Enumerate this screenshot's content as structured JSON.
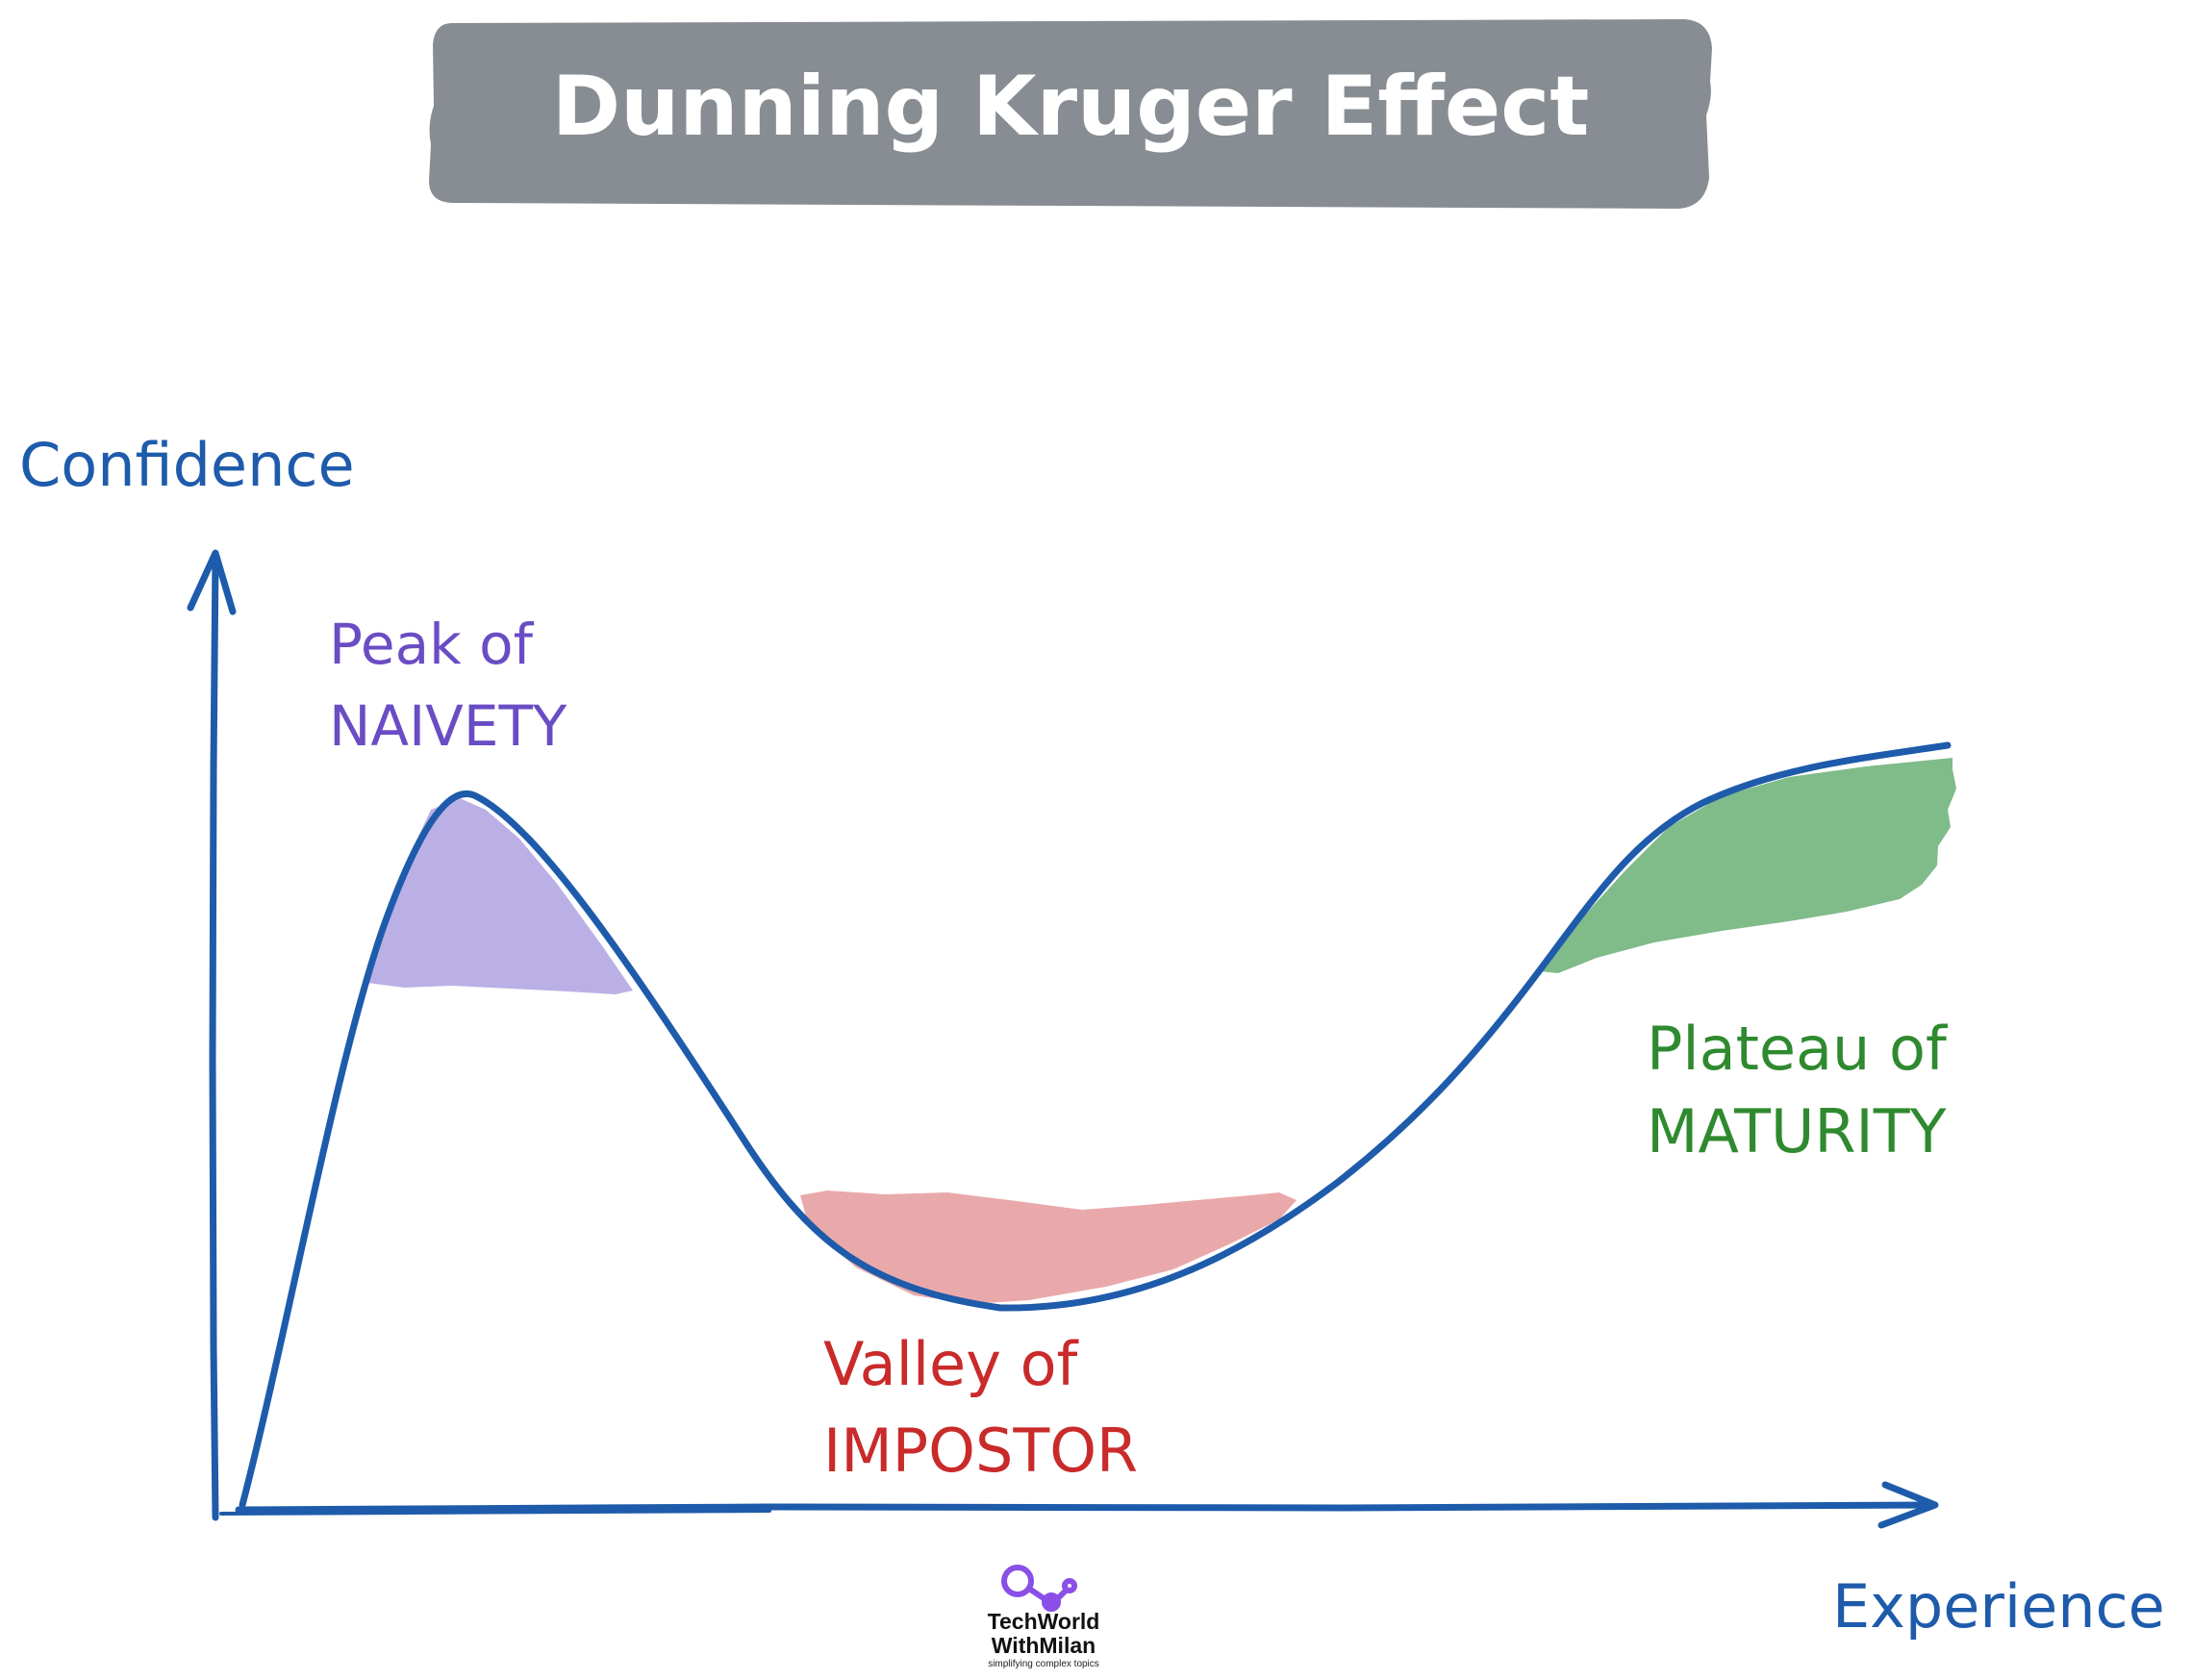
{
  "title": "Dunning Kruger Effect",
  "axes": {
    "y_label": "Confidence",
    "x_label": "Experience"
  },
  "regions": {
    "peak": {
      "line1": "Peak of",
      "line2": "NAIVETY",
      "color": "#6a4cc4",
      "fill": "#bbb0e6"
    },
    "valley": {
      "line1": "Valley of",
      "line2": "IMPOSTOR",
      "color": "#c92a2a",
      "fill": "#e9a9ab"
    },
    "plateau": {
      "line1": "Plateau of",
      "line2": "MATURITY",
      "color": "#2f8a2f",
      "fill": "#80bb8a"
    }
  },
  "logo": {
    "line1": "TechWorld",
    "line2": "WithMilan",
    "tagline": "simplifying complex topics"
  },
  "colors": {
    "banner_bg": "#878d93",
    "banner_text": "#ffffff",
    "axis": "#1e5bab",
    "curve": "#1e5bab",
    "logo_accent": "#8a4fe6"
  }
}
